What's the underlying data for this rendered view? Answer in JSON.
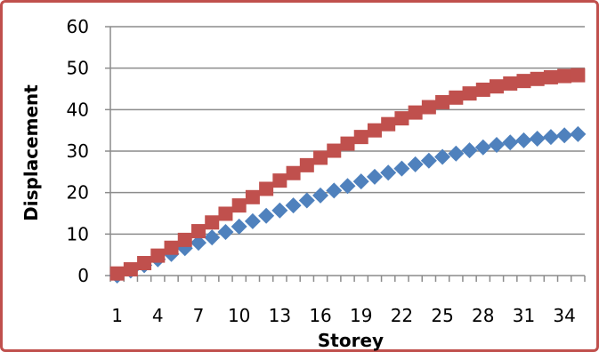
{
  "chart_data": {
    "type": "scatter",
    "title": "",
    "xlabel": "Storey",
    "ylabel": "Displacement",
    "ylim": [
      0,
      60
    ],
    "xlim": [
      0.5,
      35.5
    ],
    "yticks": [
      "0",
      "10",
      "20",
      "30",
      "40",
      "50",
      "60"
    ],
    "xticks": [
      "1",
      "4",
      "7",
      "10",
      "13",
      "16",
      "19",
      "22",
      "25",
      "28",
      "31",
      "34"
    ],
    "grid": true,
    "legend": "none",
    "x": [
      1,
      2,
      3,
      4,
      5,
      6,
      7,
      8,
      9,
      10,
      11,
      12,
      13,
      14,
      15,
      16,
      17,
      18,
      19,
      20,
      21,
      22,
      23,
      24,
      25,
      26,
      27,
      28,
      29,
      30,
      31,
      32,
      33,
      34,
      35
    ],
    "series": [
      {
        "color": "#4f81bd",
        "marker": "diamond",
        "values": [
          0,
          1.2,
          2.5,
          3.9,
          5.2,
          6.6,
          7.9,
          9.2,
          10.5,
          11.8,
          13.1,
          14.4,
          15.7,
          16.9,
          18.1,
          19.3,
          20.5,
          21.6,
          22.7,
          23.8,
          24.8,
          25.8,
          26.8,
          27.7,
          28.6,
          29.4,
          30.2,
          30.9,
          31.5,
          32.1,
          32.6,
          33.0,
          33.4,
          33.8,
          34.1
        ]
      },
      {
        "color": "#c0504d",
        "marker": "square",
        "values": [
          0.5,
          1.5,
          3.0,
          4.8,
          6.7,
          8.6,
          10.7,
          12.8,
          14.9,
          16.9,
          18.9,
          20.9,
          22.9,
          24.7,
          26.6,
          28.4,
          30.1,
          31.8,
          33.4,
          35.0,
          36.5,
          37.9,
          39.3,
          40.6,
          41.8,
          42.9,
          43.9,
          44.8,
          45.6,
          46.3,
          46.9,
          47.4,
          47.8,
          48.1,
          48.3
        ]
      }
    ]
  }
}
